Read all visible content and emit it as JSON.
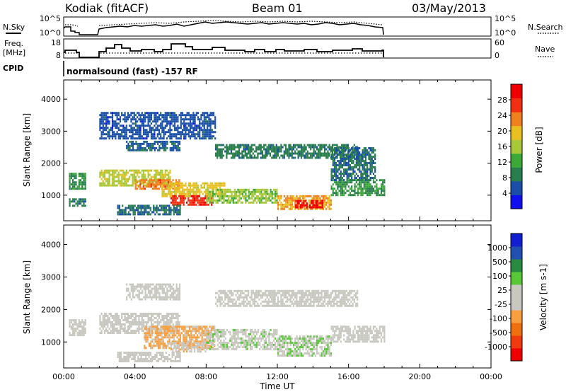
{
  "header": {
    "station": "Kodiak (fitACF)",
    "beam": "Beam 01",
    "date": "03/May/2013"
  },
  "strip_labels": {
    "nsky": "N.Sky",
    "nsearch": "N.Search",
    "freq_line1": "Freq.",
    "freq_line2": "[MHz]",
    "nave": "Nave",
    "cpid": "CPID",
    "cpid_value": "normalsound (fast) -157 RF",
    "noise_left_ticks": [
      "10^5",
      "10^0"
    ],
    "noise_right_ticks": [
      "10^5",
      "10^0"
    ],
    "freq_left_ticks": [
      "18",
      "8"
    ],
    "freq_right_ticks": [
      "60",
      "0"
    ]
  },
  "time_axis": {
    "label": "Time UT",
    "ticks": [
      "00:00",
      "04:00",
      "08:00",
      "12:00",
      "16:00",
      "20:00",
      "00:00"
    ]
  },
  "colors": {
    "power_scale": [
      "#1010ee",
      "#1a4fa8",
      "#2a7e4e",
      "#3da83a",
      "#a8c83a",
      "#e8c020",
      "#f08020",
      "#f03010",
      "#ee0000"
    ],
    "velocity_scale": [
      "#ee0000",
      "#f03a10",
      "#f07010",
      "#f8a040",
      "#c8c8c0",
      "#c8c8c0",
      "#58c838",
      "#2a8a40",
      "#2050b0",
      "#1020d0"
    ]
  },
  "chart_data": [
    {
      "type": "heatmap",
      "title": "",
      "xlabel": "Time UT",
      "ylabel": "Slant Range [km]",
      "xlim": [
        "00:00",
        "24:00"
      ],
      "ylim": [
        200,
        4600
      ],
      "y_ticks": [
        1000,
        2000,
        3000,
        4000
      ],
      "colorbar": {
        "label": "Power [dB]",
        "ticks": [
          "4",
          "8",
          "12",
          "16",
          "20",
          "24",
          "28"
        ],
        "range": [
          0,
          30
        ]
      },
      "echo_regions": [
        {
          "t_start": 0.3,
          "t_end": 1.2,
          "r_start": 1200,
          "r_end": 1700,
          "value": 10
        },
        {
          "t_start": 0.3,
          "t_end": 1.2,
          "r_start": 700,
          "r_end": 900,
          "value": 8
        },
        {
          "t_start": 2.0,
          "t_end": 6.0,
          "r_start": 1300,
          "r_end": 1800,
          "value": 16
        },
        {
          "t_start": 4.0,
          "t_end": 6.5,
          "r_start": 1200,
          "r_end": 1500,
          "value": 22
        },
        {
          "t_start": 5.5,
          "t_end": 9.0,
          "r_start": 1000,
          "r_end": 1400,
          "value": 18
        },
        {
          "t_start": 6.0,
          "t_end": 8.3,
          "r_start": 700,
          "r_end": 1000,
          "value": 26
        },
        {
          "t_start": 8.0,
          "t_end": 12.0,
          "r_start": 800,
          "r_end": 1200,
          "value": 14
        },
        {
          "t_start": 12.0,
          "t_end": 15.0,
          "r_start": 600,
          "r_end": 1000,
          "value": 20
        },
        {
          "t_start": 13.0,
          "t_end": 14.5,
          "r_start": 650,
          "r_end": 850,
          "value": 28
        },
        {
          "t_start": 15.0,
          "t_end": 18.0,
          "r_start": 1000,
          "r_end": 1500,
          "value": 10
        },
        {
          "t_start": 8.5,
          "t_end": 16.5,
          "r_start": 2200,
          "r_end": 2600,
          "value": 8
        },
        {
          "t_start": 15.0,
          "t_end": 17.5,
          "r_start": 1500,
          "r_end": 2500,
          "value": 7
        },
        {
          "t_start": 3.5,
          "t_end": 6.5,
          "r_start": 2400,
          "r_end": 2700,
          "value": 6
        },
        {
          "t_start": 3.0,
          "t_end": 6.5,
          "r_start": 400,
          "r_end": 700,
          "value": 7
        },
        {
          "t_start": 2.0,
          "t_end": 8.5,
          "r_start": 2800,
          "r_end": 3600,
          "value": 5
        }
      ]
    },
    {
      "type": "heatmap",
      "title": "",
      "xlabel": "Time UT",
      "ylabel": "Slant Range [km]",
      "xlim": [
        "00:00",
        "24:00"
      ],
      "ylim": [
        200,
        4600
      ],
      "y_ticks": [
        1000,
        2000,
        3000,
        4000
      ],
      "colorbar": {
        "label": "Velocity [m s-1]",
        "ticks": [
          "-1000",
          "-500",
          "-100",
          "-25",
          "25",
          "100",
          "500",
          "1000"
        ],
        "range": [
          -1200,
          1200
        ]
      },
      "echo_regions": [
        {
          "t_start": 0.3,
          "t_end": 1.2,
          "r_start": 1200,
          "r_end": 1700,
          "value": 0
        },
        {
          "t_start": 2.0,
          "t_end": 6.5,
          "r_start": 1300,
          "r_end": 1900,
          "value": 0
        },
        {
          "t_start": 4.5,
          "t_end": 8.5,
          "r_start": 800,
          "r_end": 1500,
          "value": -300
        },
        {
          "t_start": 6.0,
          "t_end": 8.0,
          "r_start": 700,
          "r_end": 1000,
          "value": -150
        },
        {
          "t_start": 8.0,
          "t_end": 12.0,
          "r_start": 800,
          "r_end": 1400,
          "value": 150
        },
        {
          "t_start": 12.0,
          "t_end": 15.0,
          "r_start": 600,
          "r_end": 1200,
          "value": 200
        },
        {
          "t_start": 15.0,
          "t_end": 18.0,
          "r_start": 1000,
          "r_end": 1500,
          "value": 0
        },
        {
          "t_start": 8.5,
          "t_end": 16.5,
          "r_start": 2100,
          "r_end": 2600,
          "value": 0
        },
        {
          "t_start": 3.5,
          "t_end": 6.5,
          "r_start": 2300,
          "r_end": 2800,
          "value": 0
        },
        {
          "t_start": 3.0,
          "t_end": 6.5,
          "r_start": 400,
          "r_end": 700,
          "value": 0
        }
      ]
    }
  ]
}
